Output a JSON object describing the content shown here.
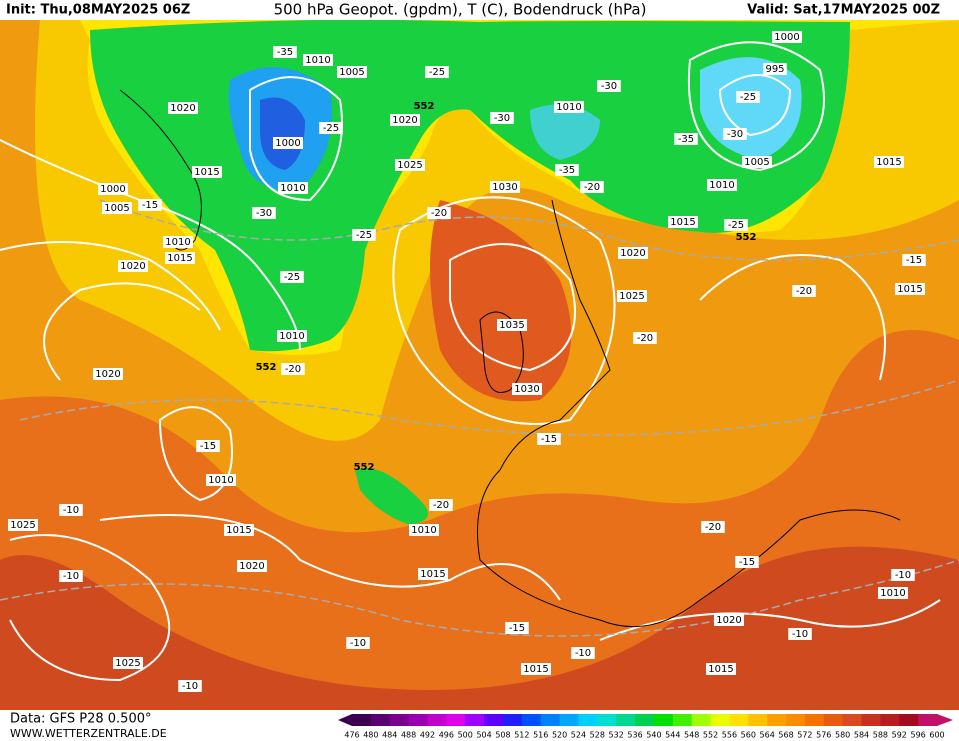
{
  "header": {
    "init": "Init: Thu,08MAY2025 06Z",
    "title": "500 hPa Geopot. (gpdm), T (C), Bodendruck (hPa)",
    "valid": "Valid: Sat,17MAY2025 00Z"
  },
  "footer": {
    "data": "Data: GFS P28 0.500°",
    "site": "WWW.WETTERZENTRALE.DE"
  },
  "scale": {
    "labels": [
      "476",
      "480",
      "484",
      "488",
      "492",
      "496",
      "500",
      "504",
      "508",
      "512",
      "516",
      "520",
      "524",
      "528",
      "532",
      "536",
      "540",
      "544",
      "548",
      "552",
      "556",
      "560",
      "564",
      "568",
      "572",
      "576",
      "580",
      "584",
      "588",
      "592",
      "596",
      "600"
    ],
    "colors": [
      "#3c0050",
      "#5a0070",
      "#7a0090",
      "#9a00b0",
      "#c000d0",
      "#e000f0",
      "#a000ff",
      "#6000ff",
      "#2020ff",
      "#0050ff",
      "#0080ff",
      "#00a8ff",
      "#00d0ff",
      "#00e0d0",
      "#00d890",
      "#00d050",
      "#00e000",
      "#40f000",
      "#a0ff00",
      "#e8ff00",
      "#ffe000",
      "#ffc000",
      "#ffa000",
      "#ff8c00",
      "#f87000",
      "#e85a10",
      "#d84a20",
      "#c83020",
      "#b81c20",
      "#a00c20",
      "#c0106a"
    ]
  },
  "pressure_labels": [
    "1010",
    "1005",
    "1020",
    "1000",
    "1015",
    "1010",
    "1000",
    "1005",
    "1010",
    "1015",
    "1020",
    "1010",
    "1020",
    "1025",
    "1020",
    "1030",
    "1035",
    "1030",
    "1010",
    "1000",
    "995",
    "1005",
    "1010",
    "1015",
    "1015",
    "1020",
    "1025",
    "1015",
    "1010",
    "1015",
    "1020",
    "1025",
    "1010",
    "1015",
    "1020",
    "1015",
    "1015",
    "1025",
    "1010"
  ],
  "temperature_labels": [
    "-35",
    "-25",
    "-25",
    "-30",
    "-15",
    "-25",
    "-25",
    "-20",
    "-20",
    "-30",
    "-30",
    "-35",
    "-20",
    "-25",
    "-30",
    "-35",
    "-25",
    "-20",
    "-15",
    "-20",
    "-15",
    "-15",
    "-10",
    "-10",
    "-20",
    "-20",
    "-15",
    "-10",
    "-15",
    "-10",
    "-10",
    "-10",
    "-10"
  ],
  "height_labels": [
    "552",
    "552",
    "552",
    "552"
  ]
}
